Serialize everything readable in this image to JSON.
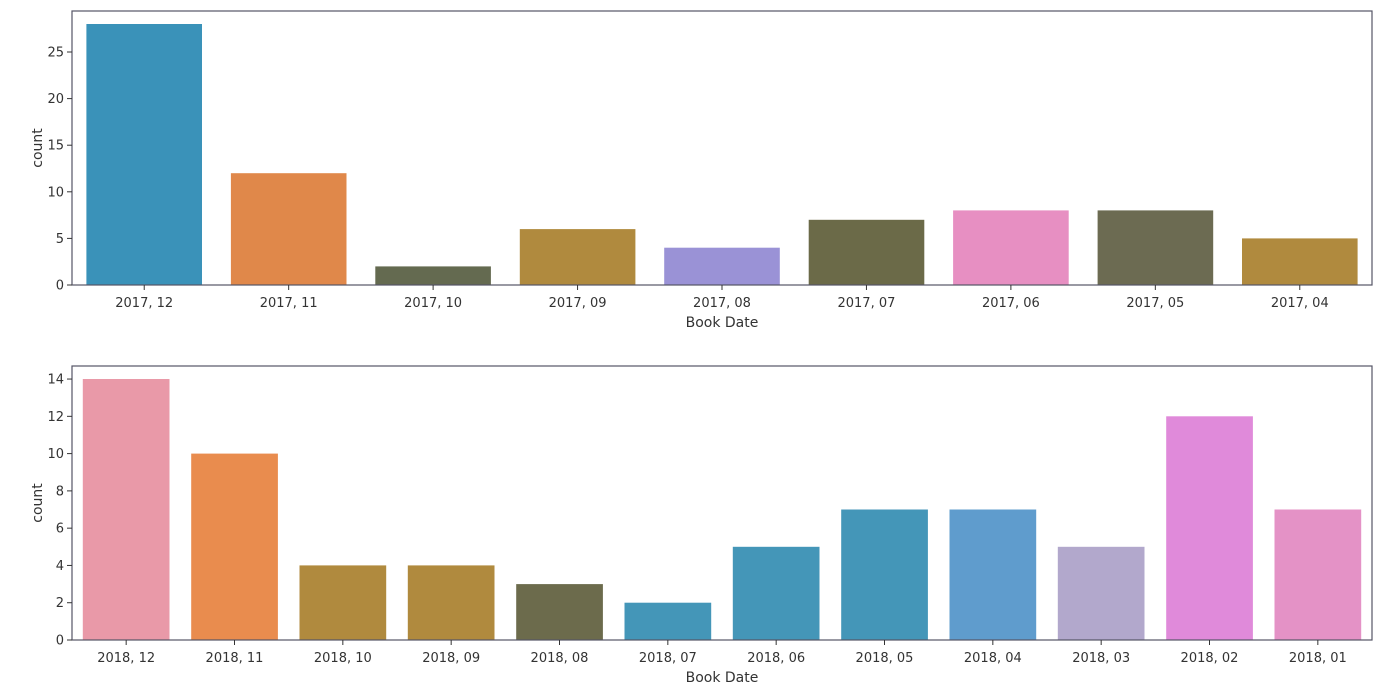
{
  "chart_data": [
    {
      "type": "bar",
      "xlabel": "Book Date",
      "ylabel": "count",
      "ylim": [
        0,
        29.4
      ],
      "yticks": [
        0,
        5,
        10,
        15,
        20,
        25
      ],
      "grid": false,
      "categories": [
        "2017, 12",
        "2017, 11",
        "2017, 10",
        "2017, 09",
        "2017, 08",
        "2017, 07",
        "2017, 06",
        "2017, 05",
        "2017, 04"
      ],
      "values": [
        28,
        12,
        2,
        6,
        4,
        7,
        8,
        8,
        5
      ],
      "colors": [
        "#3a92b9",
        "#e0884a",
        "#646a50",
        "#b08a3e",
        "#9a92d6",
        "#6b6a48",
        "#e78fc2",
        "#6c6b52",
        "#b08a3e"
      ]
    },
    {
      "type": "bar",
      "xlabel": "Book Date",
      "ylabel": "count",
      "ylim": [
        0,
        14.7
      ],
      "yticks": [
        0,
        2,
        4,
        6,
        8,
        10,
        12,
        14
      ],
      "grid": false,
      "categories": [
        "2018, 12",
        "2018, 11",
        "2018, 10",
        "2018, 09",
        "2018, 08",
        "2018, 07",
        "2018, 06",
        "2018, 05",
        "2018, 04",
        "2018, 03",
        "2018, 02",
        "2018, 01"
      ],
      "values": [
        14,
        10,
        4,
        4,
        3,
        2,
        5,
        7,
        7,
        5,
        12,
        7
      ],
      "colors": [
        "#e999a8",
        "#e98c4e",
        "#b08a3e",
        "#b08a3e",
        "#6c6b4c",
        "#4496b8",
        "#4496b8",
        "#4496b8",
        "#5f9ccd",
        "#b2a8cc",
        "#e08ada",
        "#e492c6"
      ]
    }
  ]
}
